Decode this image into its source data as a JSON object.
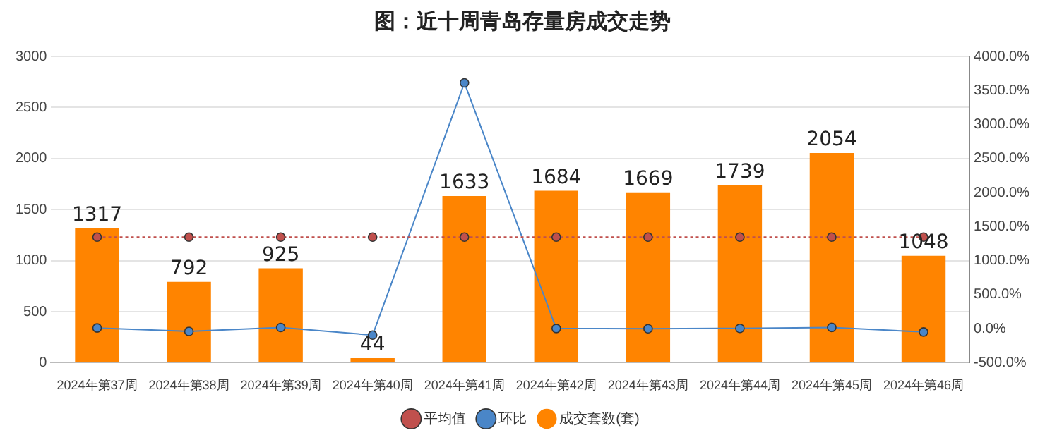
{
  "chart_data": {
    "type": "bar",
    "title": "图：近十周青岛存量房成交走势",
    "categories": [
      "2024年第37周",
      "2024年第38周",
      "2024年第39周",
      "2024年第40周",
      "2024年第41周",
      "2024年第42周",
      "2024年第43周",
      "2024年第44周",
      "2024年第45周",
      "2024年第46周"
    ],
    "series": [
      {
        "name": "成交套数(套)",
        "color": "#ff8400",
        "values": [
          1317,
          792,
          925,
          44,
          1633,
          1684,
          1669,
          1739,
          2054,
          1048
        ],
        "value_labels": [
          "1317",
          "792",
          "925",
          "44",
          "1633",
          "1684",
          "1669",
          "1739",
          "2054",
          "1048"
        ]
      },
      {
        "name": "平均值",
        "type": "line",
        "color": "#c0504d",
        "line_style": "dotted",
        "values": [
          1230,
          1230,
          1230,
          1230,
          1230,
          1230,
          1230,
          1230,
          1230,
          1230
        ]
      },
      {
        "name": "环比",
        "type": "line",
        "axis": "y2",
        "color": "#4a86c8",
        "values": [
          10,
          -40,
          17,
          -95,
          3611,
          3,
          -1,
          4,
          18,
          -49
        ]
      }
    ],
    "ylim": [
      0,
      3000
    ],
    "yticks": [
      0,
      500,
      1000,
      1500,
      2000,
      2500,
      3000
    ],
    "y2lim": [
      -500,
      4000
    ],
    "y2ticks": [
      {
        "value": -500,
        "label": "-500.0%"
      },
      {
        "value": 0,
        "label": "0.0%"
      },
      {
        "value": 500,
        "label": "500.0%"
      },
      {
        "value": 1000,
        "label": "1000.0%"
      },
      {
        "value": 1500,
        "label": "1500.0%"
      },
      {
        "value": 2000,
        "label": "2000.0%"
      },
      {
        "value": 2500,
        "label": "2500.0%"
      },
      {
        "value": 3000,
        "label": "3000.0%"
      },
      {
        "value": 3500,
        "label": "3500.0%"
      },
      {
        "value": 4000,
        "label": "4000.0%"
      }
    ],
    "grid": "y",
    "legend": "bottom",
    "marker": "circle"
  }
}
